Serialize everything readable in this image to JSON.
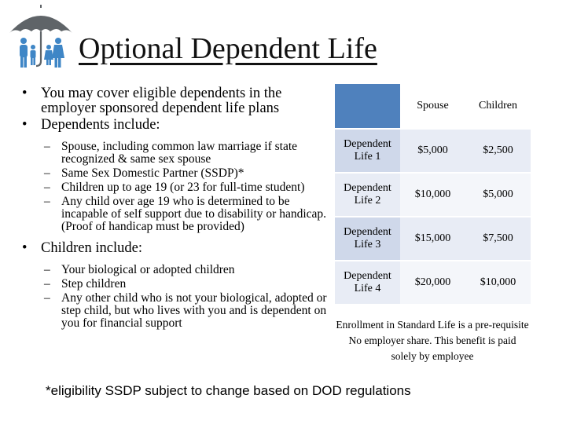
{
  "title": "Optional Dependent Life",
  "left": {
    "bullet1": "You may cover eligible dependents in the employer sponsored dependent life plans",
    "bullet2": "Dependents include:",
    "dependents": [
      "Spouse, including common law marriage if state recognized & same sex spouse",
      "Same Sex Domestic Partner (SSDP)*",
      "Children up to age 19 (or 23 for full-time student)",
      "Any child over age 19 who is determined to be incapable of self support due to disability or handicap.  (Proof of handicap must be provided)"
    ],
    "bullet3": "Children include:",
    "children": [
      "Your biological or adopted children",
      "Step children",
      "Any other child who is not your biological, adopted or step child, but who lives with you and is dependent on you for financial support"
    ]
  },
  "table": {
    "headers": [
      "",
      "Spouse",
      "Children"
    ],
    "rows": [
      {
        "label": "Dependent Life 1",
        "spouse": "$5,000",
        "children": "$2,500"
      },
      {
        "label": "Dependent Life 2",
        "spouse": "$10,000",
        "children": "$5,000"
      },
      {
        "label": "Dependent Life 3",
        "spouse": "$15,000",
        "children": "$7,500"
      },
      {
        "label": "Dependent Life 4",
        "spouse": "$20,000",
        "children": "$10,000"
      }
    ]
  },
  "note": {
    "line1": "Enrollment in Standard Life is a pre-requisite",
    "line2": "No employer share. This benefit is paid solely by employee"
  },
  "footnote": "*eligibility SSDP subject to change based on DOD regulations",
  "colors": {
    "header_accent": "#4f81bd",
    "row_dark": "#cfd8ea",
    "row_light": "#e8ecf5",
    "umbrella": "#5f6468",
    "family": "#3f86c6"
  }
}
